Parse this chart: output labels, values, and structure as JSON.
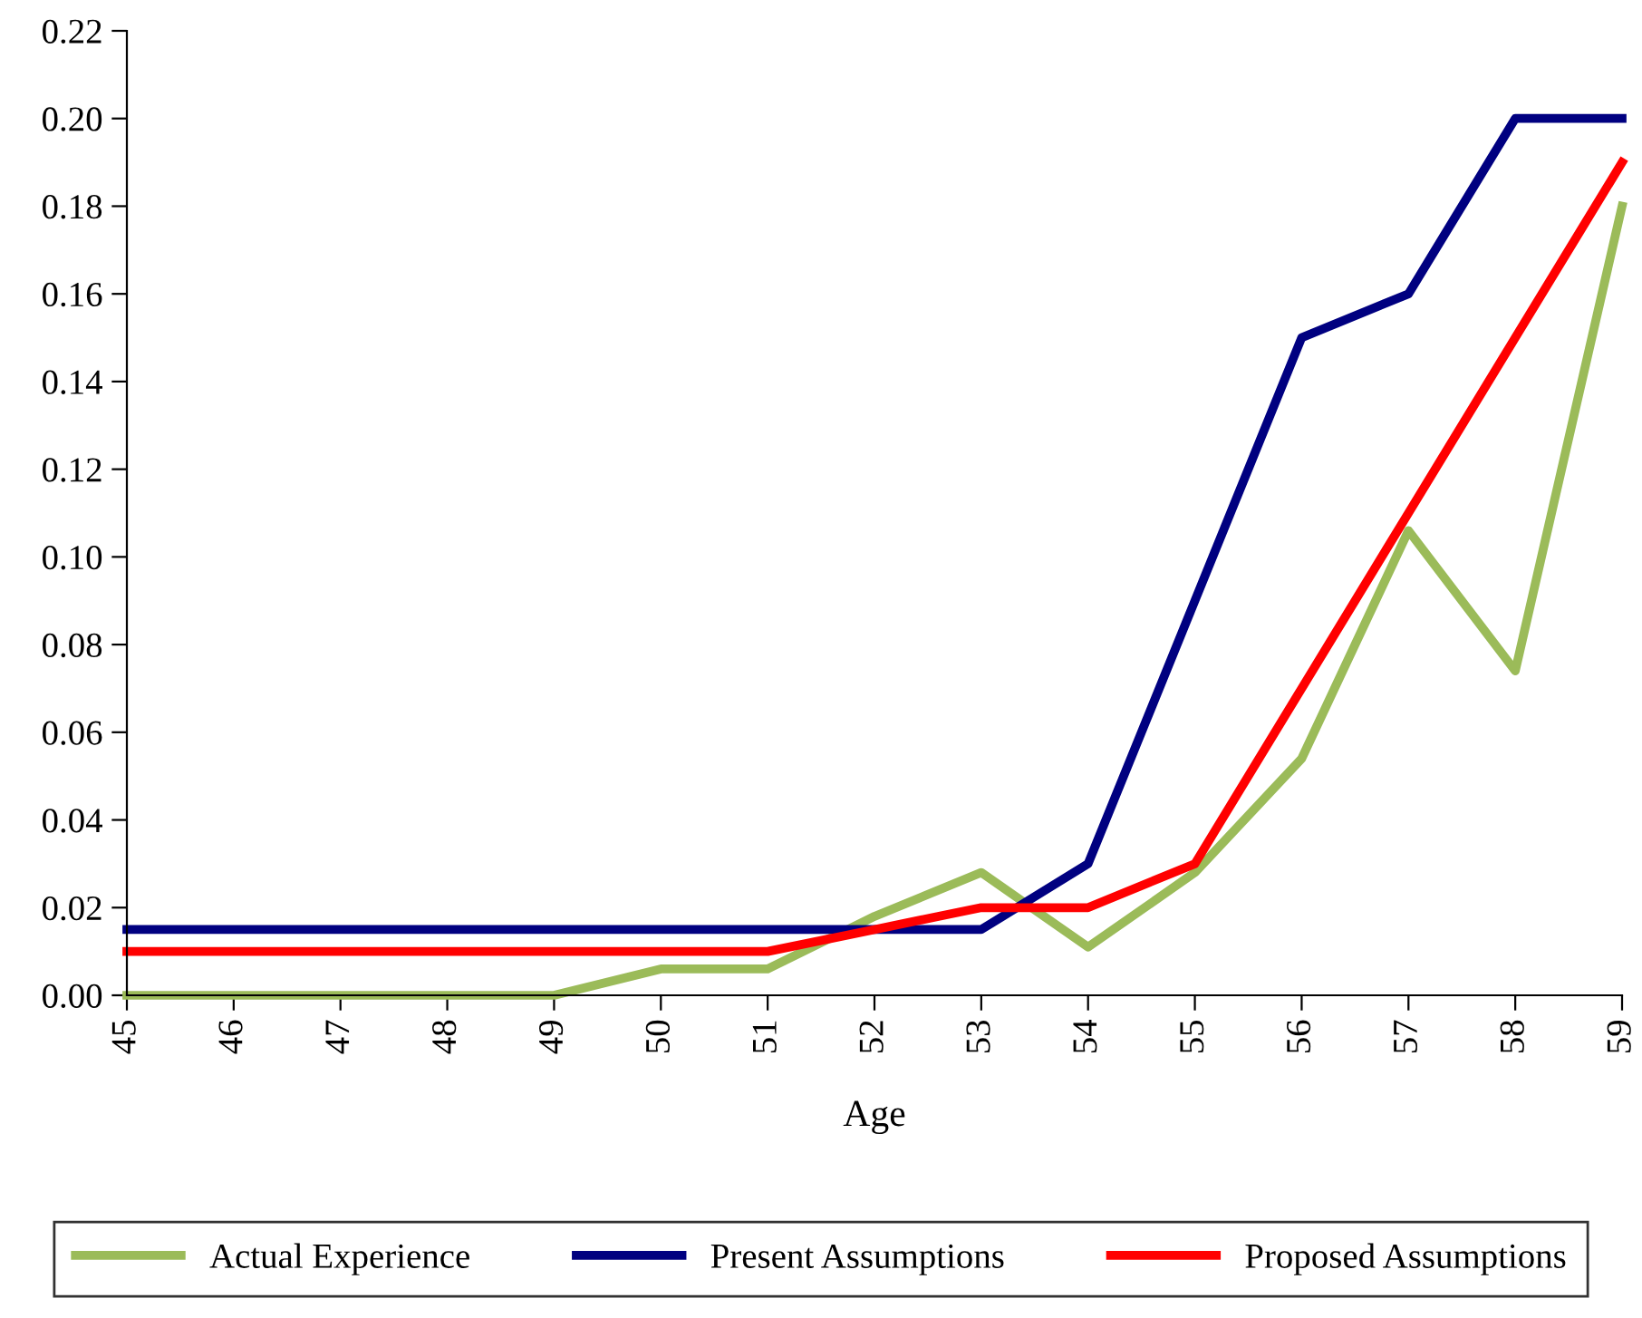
{
  "chart_data": {
    "type": "line",
    "xlabel": "Age",
    "x": [
      45,
      46,
      47,
      48,
      49,
      50,
      51,
      52,
      53,
      54,
      55,
      56,
      57,
      58,
      59
    ],
    "xlim": [
      45,
      59
    ],
    "xticks": [
      45,
      46,
      47,
      48,
      49,
      50,
      51,
      52,
      53,
      54,
      55,
      56,
      57,
      58,
      59
    ],
    "ylim": [
      0,
      0.22
    ],
    "yticks": [
      {
        "value": 0,
        "label": "0.00"
      },
      {
        "value": 0.02,
        "label": "0.02"
      },
      {
        "value": 0.04,
        "label": "0.04"
      },
      {
        "value": 0.06,
        "label": "0.06"
      },
      {
        "value": 0.08,
        "label": "0.08"
      },
      {
        "value": 0.1,
        "label": "0.10"
      },
      {
        "value": 0.12,
        "label": "0.12"
      },
      {
        "value": 0.14,
        "label": "0.14"
      },
      {
        "value": 0.16,
        "label": "0.16"
      },
      {
        "value": 0.18,
        "label": "0.18"
      },
      {
        "value": 0.2,
        "label": "0.20"
      },
      {
        "value": 0.22,
        "label": "0.22"
      }
    ],
    "grid": false,
    "legend": "bottom",
    "marker": "none",
    "line_style": "solid",
    "series": [
      {
        "name": "Actual Experience",
        "color": "#9bbb59",
        "values": [
          0,
          0,
          0,
          0,
          0,
          0.006,
          0.006,
          0.018,
          0.028,
          0.011,
          0.028,
          0.054,
          0.106,
          0.074,
          0.18
        ]
      },
      {
        "name": "Present Assumptions",
        "color": "#000080",
        "values": [
          0.015,
          0.015,
          0.015,
          0.015,
          0.015,
          0.015,
          0.015,
          0.015,
          0.015,
          0.03,
          0.09,
          0.15,
          0.16,
          0.2,
          0.2
        ]
      },
      {
        "name": "Proposed Assumptions",
        "color": "#ff0000",
        "values": [
          0.01,
          0.01,
          0.01,
          0.01,
          0.01,
          0.01,
          0.01,
          0.015,
          0.02,
          0.02,
          0.03,
          0.07,
          0.11,
          0.15,
          0.19
        ]
      }
    ]
  }
}
